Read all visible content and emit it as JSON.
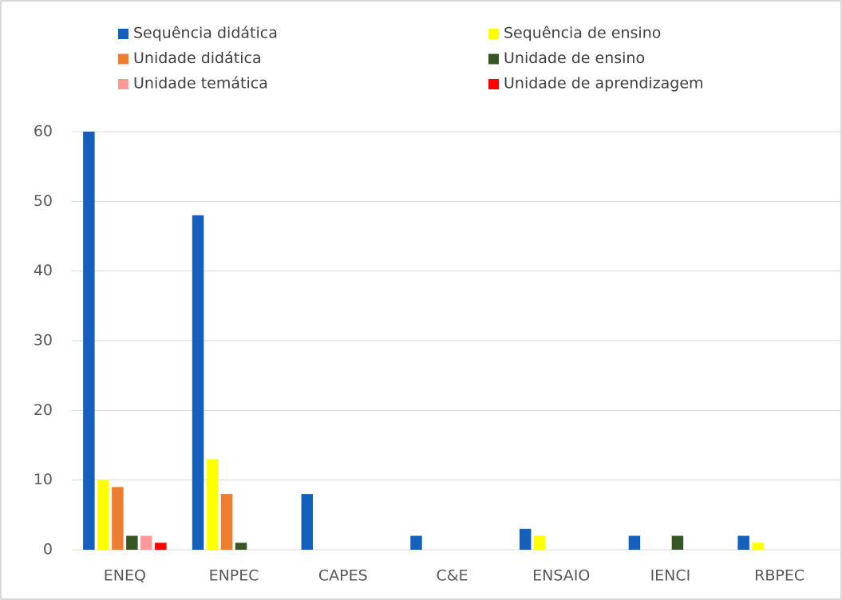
{
  "chart_data": {
    "type": "bar",
    "categories": [
      "ENEQ",
      "ENPEC",
      "CAPES",
      "C&E",
      "ENSAIO",
      "IENCI",
      "RBPEC"
    ],
    "series": [
      {
        "name": "Sequência didática",
        "color": "#1560bd",
        "values": [
          60,
          48,
          8,
          2,
          3,
          2,
          2
        ]
      },
      {
        "name": "Sequência de ensino",
        "color": "#ffff00",
        "values": [
          10,
          13,
          0,
          0,
          2,
          0,
          1
        ]
      },
      {
        "name": "Unidade didática",
        "color": "#ed7d31",
        "values": [
          9,
          8,
          0,
          0,
          0,
          0,
          0
        ]
      },
      {
        "name": "Unidade de ensino",
        "color": "#375623",
        "values": [
          2,
          1,
          0,
          0,
          0,
          2,
          0
        ]
      },
      {
        "name": "Unidade temática",
        "color": "#ff9999",
        "values": [
          2,
          0,
          0,
          0,
          0,
          0,
          0
        ]
      },
      {
        "name": "Unidade de aprendizagem",
        "color": "#ff0000",
        "values": [
          1,
          0,
          0,
          0,
          0,
          0,
          0
        ]
      }
    ],
    "ylim": [
      0,
      60
    ],
    "yticks": [
      0,
      10,
      20,
      30,
      40,
      50,
      60
    ],
    "grid": true,
    "legend": "top"
  }
}
